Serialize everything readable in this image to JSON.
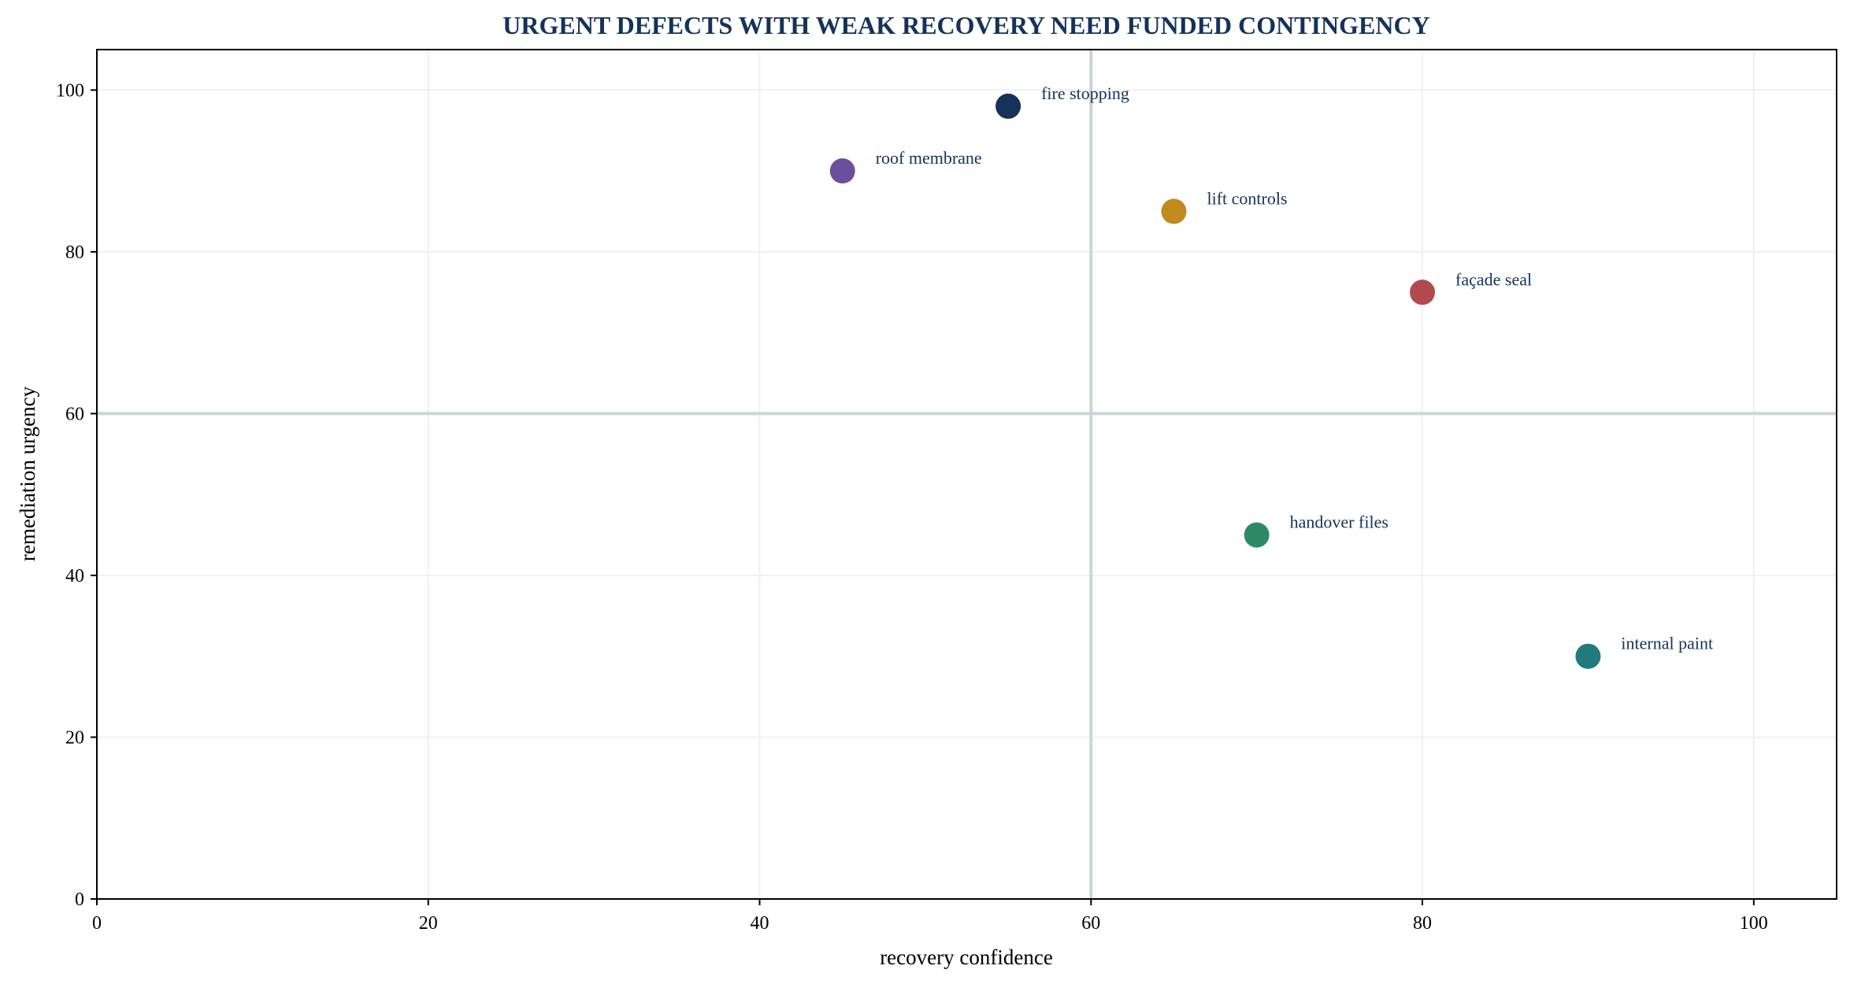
{
  "chart_data": {
    "type": "scatter",
    "title": "URGENT DEFECTS WITH WEAK RECOVERY NEED FUNDED CONTINGENCY",
    "xlabel": "recovery confidence",
    "ylabel": "remediation urgency",
    "xlim": [
      0,
      105
    ],
    "ylim": [
      0,
      105
    ],
    "xticks": [
      0,
      20,
      40,
      60,
      80,
      100
    ],
    "yticks": [
      0,
      20,
      40,
      60,
      80,
      100
    ],
    "grid": true,
    "reference_lines": {
      "x": 60,
      "y": 60
    },
    "points": [
      {
        "label": "fire stopping",
        "x": 55,
        "y": 98,
        "color": "#14325a"
      },
      {
        "label": "roof membrane",
        "x": 45,
        "y": 90,
        "color": "#6b4f9a"
      },
      {
        "label": "lift controls",
        "x": 65,
        "y": 85,
        "color": "#c08a1e"
      },
      {
        "label": "façade seal",
        "x": 80,
        "y": 75,
        "color": "#b04a4f"
      },
      {
        "label": "handover files",
        "x": 70,
        "y": 45,
        "color": "#2e8a66"
      },
      {
        "label": "internal paint",
        "x": 90,
        "y": 30,
        "color": "#237a7c"
      }
    ]
  },
  "colors": {
    "title": "#14325a",
    "label_text": "#14325a",
    "grid": "#ececec",
    "reference_line": "#cdd3d9",
    "axis": "#000000"
  }
}
